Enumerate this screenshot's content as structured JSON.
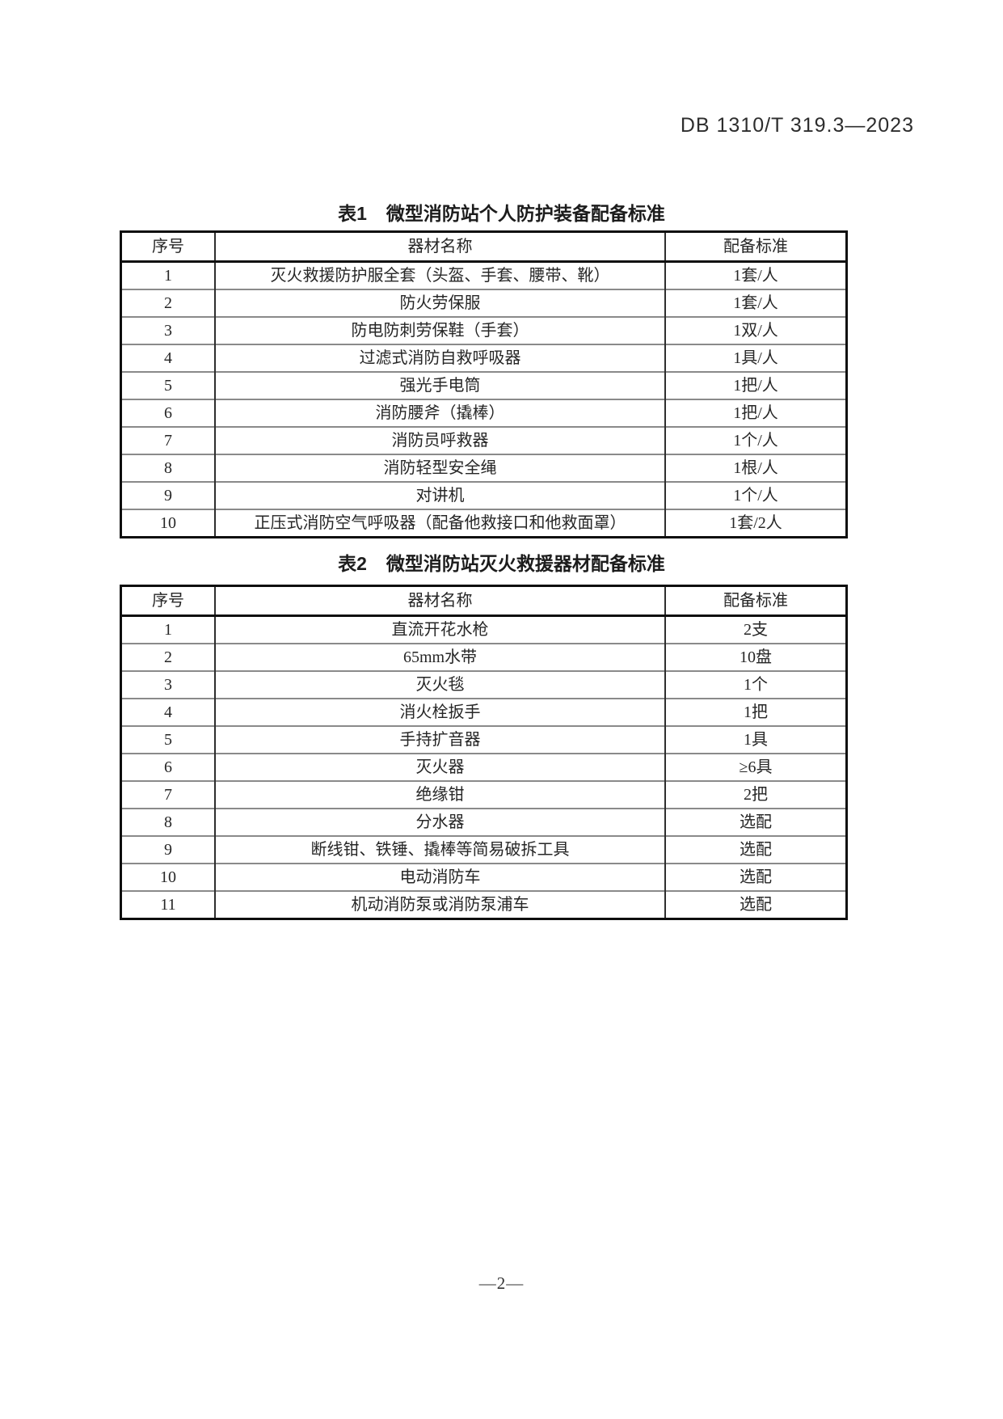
{
  "page": {
    "header_ref": "DB 1310/T 319.3—2023",
    "footer_page": "—2—"
  },
  "tables": [
    {
      "title_no": "表1",
      "title_text": "微型消防站个人防护装备配备标准",
      "columns": [
        "序号",
        "器材名称",
        "配备标准"
      ],
      "rows": [
        [
          "1",
          "灭火救援防护服全套（头盔、手套、腰带、靴）",
          "1套/人"
        ],
        [
          "2",
          "防火劳保服",
          "1套/人"
        ],
        [
          "3",
          "防电防刺劳保鞋（手套）",
          "1双/人"
        ],
        [
          "4",
          "过滤式消防自救呼吸器",
          "1具/人"
        ],
        [
          "5",
          "强光手电筒",
          "1把/人"
        ],
        [
          "6",
          "消防腰斧（撬棒）",
          "1把/人"
        ],
        [
          "7",
          "消防员呼救器",
          "1个/人"
        ],
        [
          "8",
          "消防轻型安全绳",
          "1根/人"
        ],
        [
          "9",
          "对讲机",
          "1个/人"
        ],
        [
          "10",
          "正压式消防空气呼吸器（配备他救接口和他救面罩）",
          "1套/2人"
        ]
      ]
    },
    {
      "title_no": "表2",
      "title_text": "微型消防站灭火救援器材配备标准",
      "columns": [
        "序号",
        "器材名称",
        "配备标准"
      ],
      "rows": [
        [
          "1",
          "直流开花水枪",
          "2支"
        ],
        [
          "2",
          "65mm水带",
          "10盘"
        ],
        [
          "3",
          "灭火毯",
          "1个"
        ],
        [
          "4",
          "消火栓扳手",
          "1把"
        ],
        [
          "5",
          "手持扩音器",
          "1具"
        ],
        [
          "6",
          "灭火器",
          "≥6具"
        ],
        [
          "7",
          "绝缘钳",
          "2把"
        ],
        [
          "8",
          "分水器",
          "选配"
        ],
        [
          "9",
          "断线钳、铁锤、撬棒等简易破拆工具",
          "选配"
        ],
        [
          "10",
          "电动消防车",
          "选配"
        ],
        [
          "11",
          "机动消防泵或消防泵浦车",
          "选配"
        ]
      ]
    }
  ]
}
